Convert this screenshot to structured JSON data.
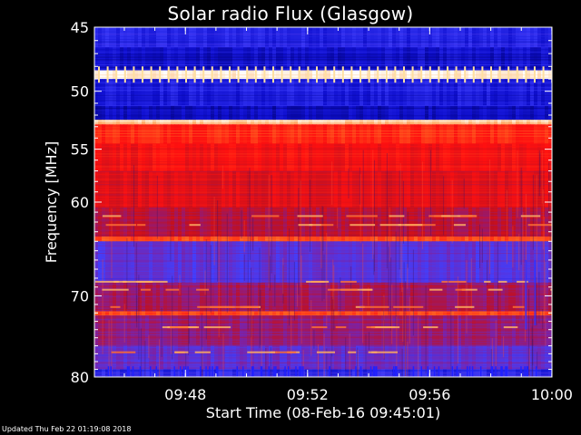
{
  "chart_data": {
    "type": "heatmap",
    "title": "Solar radio Flux (Glasgow)",
    "xlabel": "Start Time (08-Feb-16 09:45:01)",
    "ylabel": "Frequency [MHz]",
    "x_start": "09:45:01",
    "x_end": "10:00:00",
    "xticks": [
      "09:48",
      "09:52",
      "09:56",
      "10:00"
    ],
    "xtick_minutes": [
      2.98,
      6.98,
      10.98,
      14.98
    ],
    "yticks": [
      45,
      50,
      55,
      60,
      70,
      80
    ],
    "ylim": [
      45,
      80
    ],
    "y_scale": "log",
    "y_direction": "downward",
    "colormap": [
      "#000070",
      "#1010d0",
      "#4040ff",
      "#8020a0",
      "#c01020",
      "#ff1010",
      "#ff6020",
      "#ffc080",
      "#ffffff"
    ],
    "frequency_bands": [
      {
        "from": 45,
        "to": 46.5,
        "level": 0.18
      },
      {
        "from": 46.5,
        "to": 48.3,
        "level": 0.12
      },
      {
        "from": 48.3,
        "to": 49.0,
        "level": 0.97
      },
      {
        "from": 49.0,
        "to": 51.2,
        "level": 0.16
      },
      {
        "from": 51.2,
        "to": 52.4,
        "level": 0.1
      },
      {
        "from": 52.4,
        "to": 52.8,
        "level": 0.9
      },
      {
        "from": 52.8,
        "to": 54.5,
        "level": 0.66
      },
      {
        "from": 54.5,
        "to": 57.0,
        "level": 0.6
      },
      {
        "from": 57.0,
        "to": 60.5,
        "level": 0.56
      },
      {
        "from": 60.5,
        "to": 63.5,
        "level": 0.48
      },
      {
        "from": 63.5,
        "to": 64.0,
        "level": 0.72
      },
      {
        "from": 64.0,
        "to": 68.5,
        "level": 0.3
      },
      {
        "from": 68.5,
        "to": 71.8,
        "level": 0.44
      },
      {
        "from": 71.8,
        "to": 72.3,
        "level": 0.7
      },
      {
        "from": 72.3,
        "to": 76.0,
        "level": 0.42
      },
      {
        "from": 76.0,
        "to": 79.0,
        "level": 0.32
      },
      {
        "from": 79.0,
        "to": 80.0,
        "level": 0.2
      }
    ]
  },
  "footer": "Updated Thu Feb 22 01:19:08 2018"
}
